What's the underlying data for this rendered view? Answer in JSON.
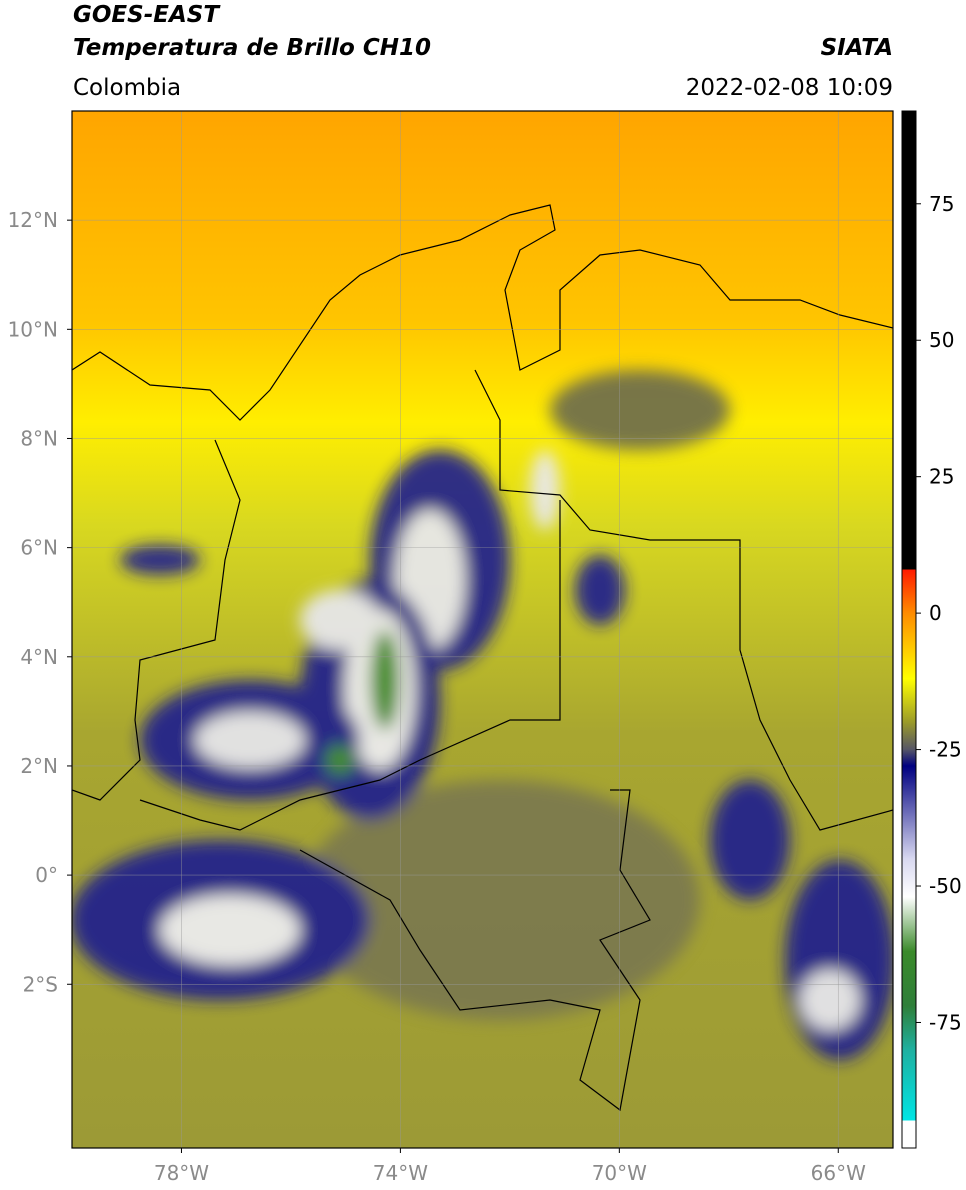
{
  "header": {
    "title": "GOES-EAST",
    "subtitle": "Temperatura de Brillo CH10",
    "source": "SIATA",
    "region": "Colombia",
    "datetime": "2022-02-08 10:09"
  },
  "map": {
    "xlim": [
      -80,
      -65
    ],
    "ylim": [
      -5,
      14
    ],
    "xticks": [
      {
        "value": -78,
        "label": "78°W"
      },
      {
        "value": -74,
        "label": "74°W"
      },
      {
        "value": -70,
        "label": "70°W"
      },
      {
        "value": -66,
        "label": "66°W"
      }
    ],
    "yticks": [
      {
        "value": 12,
        "label": "12°N"
      },
      {
        "value": 10,
        "label": "10°N"
      },
      {
        "value": 8,
        "label": "8°N"
      },
      {
        "value": 6,
        "label": "6°N"
      },
      {
        "value": 4,
        "label": "4°N"
      },
      {
        "value": 2,
        "label": "2°N"
      },
      {
        "value": 0,
        "label": "0°"
      },
      {
        "value": -2,
        "label": "2°S"
      }
    ],
    "grid": true
  },
  "colorbar": {
    "lim": [
      -98,
      92
    ],
    "ticks": [
      75,
      50,
      25,
      0,
      -25,
      -50,
      -75
    ],
    "stops": [
      {
        "value": 92,
        "color": "#000000"
      },
      {
        "value": 8,
        "color": "#000000"
      },
      {
        "value": 8,
        "color": "#ff1a00"
      },
      {
        "value": 0,
        "color": "#ff8c00"
      },
      {
        "value": -12,
        "color": "#ffff00"
      },
      {
        "value": -20,
        "color": "#9a9a2a"
      },
      {
        "value": -25,
        "color": "#555566"
      },
      {
        "value": -28,
        "color": "#000080"
      },
      {
        "value": -45,
        "color": "#d8d8f0"
      },
      {
        "value": -52,
        "color": "#ffffff"
      },
      {
        "value": -62,
        "color": "#3a8a2a"
      },
      {
        "value": -72,
        "color": "#2f7f3a"
      },
      {
        "value": -80,
        "color": "#1fb0a0"
      },
      {
        "value": -93,
        "color": "#00e5e5"
      },
      {
        "value": -93,
        "color": "#ffffff"
      },
      {
        "value": -98,
        "color": "#ffffff"
      }
    ]
  }
}
